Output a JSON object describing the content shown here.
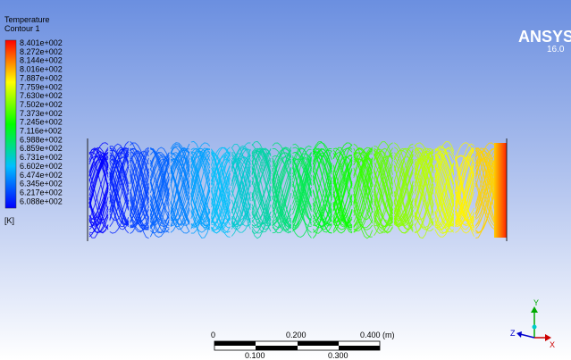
{
  "legend": {
    "title": "Temperature",
    "subtitle": "Contour 1",
    "labels": [
      "8.401e+002",
      "8.272e+002",
      "8.144e+002",
      "8.016e+002",
      "7.887e+002",
      "7.759e+002",
      "7.630e+002",
      "7.502e+002",
      "7.373e+002",
      "7.245e+002",
      "7.116e+002",
      "6.988e+002",
      "6.859e+002",
      "6.731e+002",
      "6.602e+002",
      "6.474e+002",
      "6.345e+002",
      "6.217e+002",
      "6.088e+002"
    ],
    "unit": "[K]"
  },
  "logo": {
    "name": "ANSYS",
    "version": "16.0"
  },
  "scale_bar": {
    "top_labels": [
      "0",
      "0.200",
      "0.400 (m)"
    ],
    "bottom_labels": [
      "0.100",
      "0.300"
    ]
  },
  "triad": {
    "y": "Y",
    "z": "Z",
    "x": "X"
  }
}
